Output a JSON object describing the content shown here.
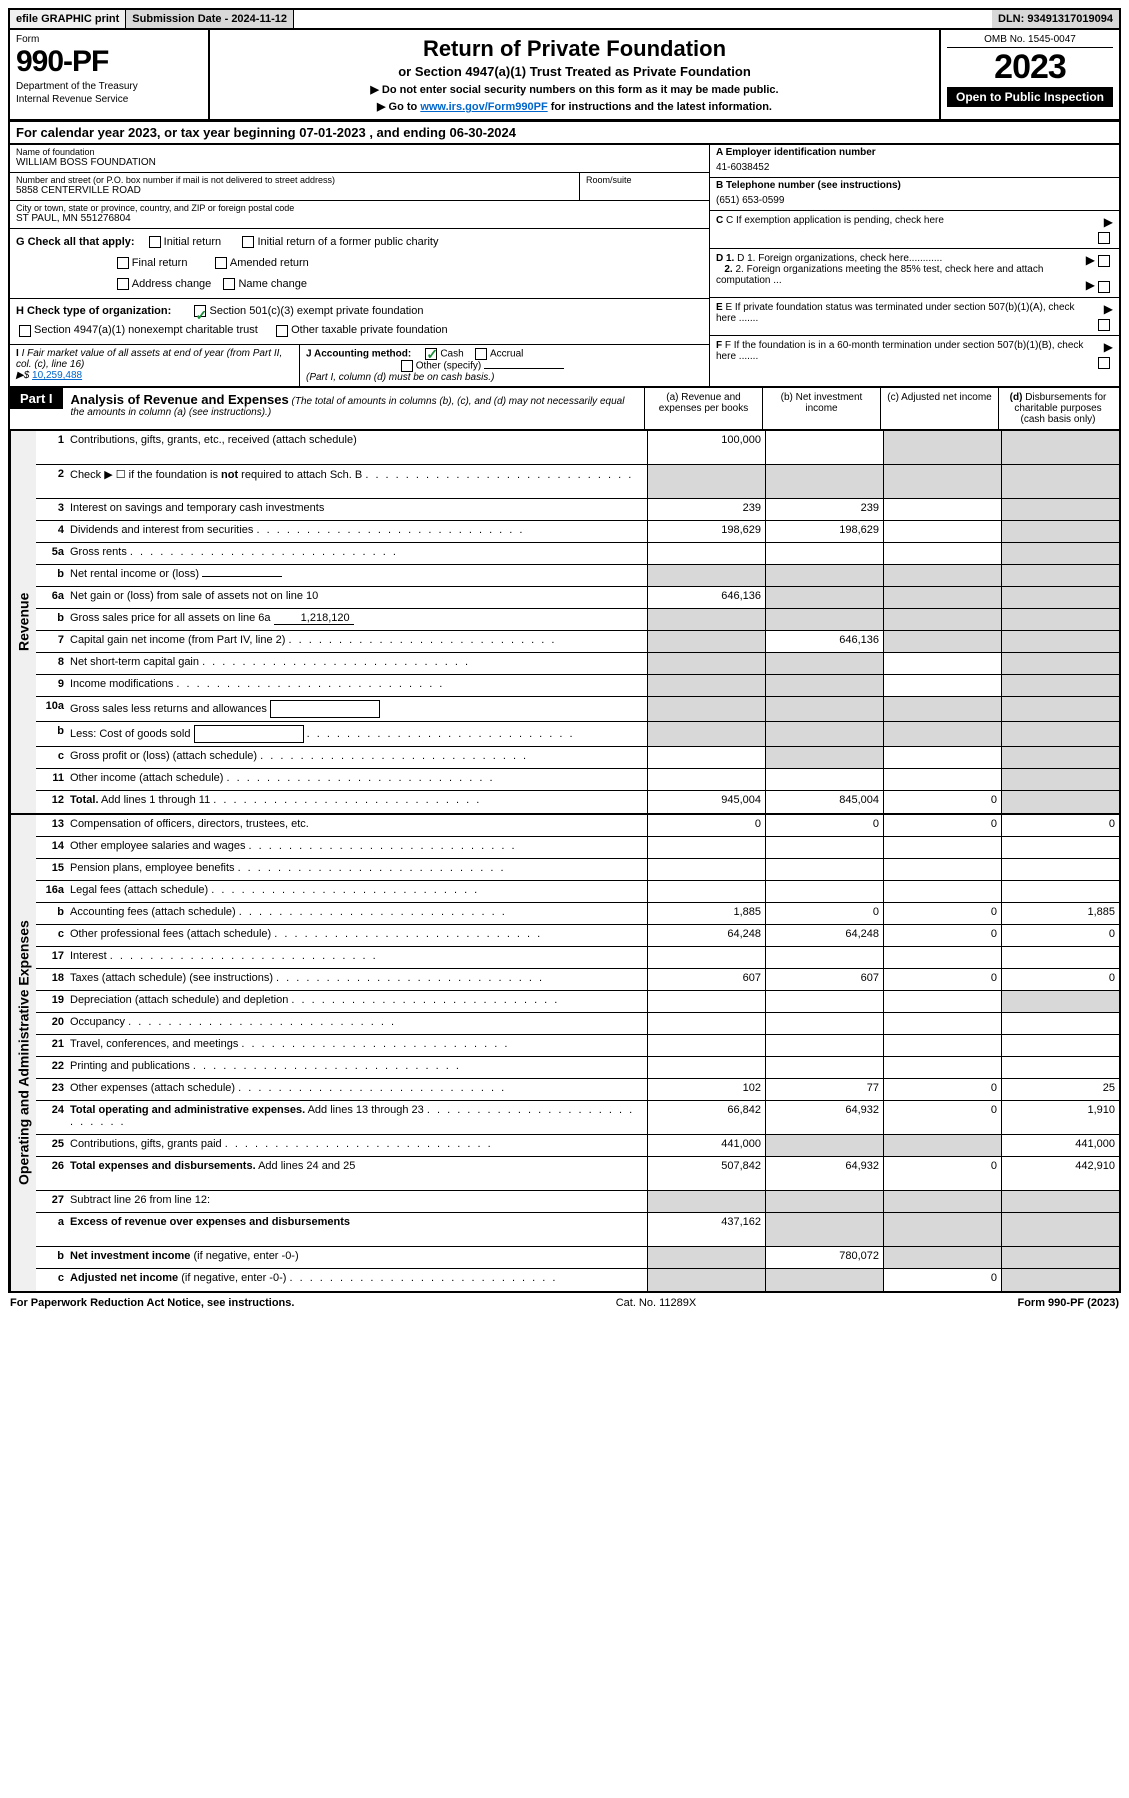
{
  "top_bar": {
    "efile": "efile GRAPHIC print",
    "submission": "Submission Date - 2024-11-12",
    "dln": "DLN: 93491317019094"
  },
  "header": {
    "form_label": "Form",
    "form_number": "990-PF",
    "dept1": "Department of the Treasury",
    "dept2": "Internal Revenue Service",
    "title": "Return of Private Foundation",
    "subtitle": "or Section 4947(a)(1) Trust Treated as Private Foundation",
    "note1": "▶ Do not enter social security numbers on this form as it may be made public.",
    "note2_pre": "▶ Go to ",
    "note2_link": "www.irs.gov/Form990PF",
    "note2_post": " for instructions and the latest information.",
    "omb": "OMB No. 1545-0047",
    "year": "2023",
    "open": "Open to Public Inspection"
  },
  "cal_year": "For calendar year 2023, or tax year beginning 07-01-2023                         , and ending 06-30-2024",
  "info": {
    "name_label": "Name of foundation",
    "name_value": "WILLIAM BOSS FOUNDATION",
    "addr_label": "Number and street (or P.O. box number if mail is not delivered to street address)",
    "addr_value": "5858 CENTERVILLE ROAD",
    "room_label": "Room/suite",
    "city_label": "City or town, state or province, country, and ZIP or foreign postal code",
    "city_value": "ST PAUL, MN  551276804",
    "ein_label": "A Employer identification number",
    "ein_value": "41-6038452",
    "phone_label": "B Telephone number (see instructions)",
    "phone_value": "(651) 653-0599",
    "c_label": "C If exemption application is pending, check here",
    "d1_label": "D 1. Foreign organizations, check here............",
    "d2_label": "2. Foreign organizations meeting the 85% test, check here and attach computation ...",
    "e_label": "E  If private foundation status was terminated under section 507(b)(1)(A), check here .......",
    "f_label": "F  If the foundation is in a 60-month termination under section 507(b)(1)(B), check here ......."
  },
  "g": {
    "label": "G Check all that apply:",
    "o1": "Initial return",
    "o2": "Initial return of a former public charity",
    "o3": "Final return",
    "o4": "Amended return",
    "o5": "Address change",
    "o6": "Name change"
  },
  "h": {
    "label": "H Check type of organization:",
    "o1": "Section 501(c)(3) exempt private foundation",
    "o2": "Section 4947(a)(1) nonexempt charitable trust",
    "o3": "Other taxable private foundation"
  },
  "i": {
    "label": "I Fair market value of all assets at end of year (from Part II, col. (c), line 16)",
    "arrow": "▶$",
    "value": "10,259,488"
  },
  "j": {
    "label": "J Accounting method:",
    "o1": "Cash",
    "o2": "Accrual",
    "o3": "Other (specify)",
    "note": "(Part I, column (d) must be on cash basis.)"
  },
  "part1": {
    "tag": "Part I",
    "title": "Analysis of Revenue and Expenses",
    "desc": "(The total of amounts in columns (b), (c), and (d) may not necessarily equal the amounts in column (a) (see instructions).)",
    "col_a": "(a)   Revenue and expenses per books",
    "col_b": "(b)   Net investment income",
    "col_c": "(c)   Adjusted net income",
    "col_d": "(d)   Disbursements for charitable purposes (cash basis only)"
  },
  "sections": {
    "revenue": "Revenue",
    "expenses": "Operating and Administrative Expenses"
  },
  "rows": [
    {
      "n": "1",
      "d": "Contributions, gifts, grants, etc., received (attach schedule)",
      "a": "100,000",
      "b": "",
      "c": "g",
      "dcol": "g",
      "tall": true
    },
    {
      "n": "2",
      "d": "Check ▶ ☐ if the foundation is <b>not</b> required to attach Sch. B",
      "a": "g",
      "b": "g",
      "c": "g",
      "dcol": "g",
      "dots": true,
      "tall": true
    },
    {
      "n": "3",
      "d": "Interest on savings and temporary cash investments",
      "a": "239",
      "b": "239",
      "c": "",
      "dcol": "g"
    },
    {
      "n": "4",
      "d": "Dividends and interest from securities",
      "a": "198,629",
      "b": "198,629",
      "c": "",
      "dcol": "g",
      "dots": true
    },
    {
      "n": "5a",
      "d": "Gross rents",
      "a": "",
      "b": "",
      "c": "",
      "dcol": "g",
      "dots": true
    },
    {
      "n": "b",
      "d": "Net rental income or (loss)",
      "a": "g",
      "b": "g",
      "c": "g",
      "dcol": "g",
      "inline": true
    },
    {
      "n": "6a",
      "d": "Net gain or (loss) from sale of assets not on line 10",
      "a": "646,136",
      "b": "g",
      "c": "g",
      "dcol": "g"
    },
    {
      "n": "b",
      "d": "Gross sales price for all assets on line 6a",
      "a": "g",
      "b": "g",
      "c": "g",
      "dcol": "g",
      "inline_val": "1,218,120"
    },
    {
      "n": "7",
      "d": "Capital gain net income (from Part IV, line 2)",
      "a": "g",
      "b": "646,136",
      "c": "g",
      "dcol": "g",
      "dots": true
    },
    {
      "n": "8",
      "d": "Net short-term capital gain",
      "a": "g",
      "b": "g",
      "c": "",
      "dcol": "g",
      "dots": true
    },
    {
      "n": "9",
      "d": "Income modifications",
      "a": "g",
      "b": "g",
      "c": "",
      "dcol": "g",
      "dots": true
    },
    {
      "n": "10a",
      "d": "Gross sales less returns and allowances",
      "a": "g",
      "b": "g",
      "c": "g",
      "dcol": "g",
      "subbox": true
    },
    {
      "n": "b",
      "d": "Less: Cost of goods sold",
      "a": "g",
      "b": "g",
      "c": "g",
      "dcol": "g",
      "subbox": true,
      "dots": true,
      "short": true
    },
    {
      "n": "c",
      "d": "Gross profit or (loss) (attach schedule)",
      "a": "",
      "b": "g",
      "c": "",
      "dcol": "g",
      "dots": true
    },
    {
      "n": "11",
      "d": "Other income (attach schedule)",
      "a": "",
      "b": "",
      "c": "",
      "dcol": "g",
      "dots": true
    },
    {
      "n": "12",
      "d": "<b>Total.</b> Add lines 1 through 11",
      "a": "945,004",
      "b": "845,004",
      "c": "0",
      "dcol": "g",
      "dots": true
    }
  ],
  "exp_rows": [
    {
      "n": "13",
      "d": "Compensation of officers, directors, trustees, etc.",
      "a": "0",
      "b": "0",
      "c": "0",
      "dcol": "0"
    },
    {
      "n": "14",
      "d": "Other employee salaries and wages",
      "a": "",
      "b": "",
      "c": "",
      "dcol": "",
      "dots": true
    },
    {
      "n": "15",
      "d": "Pension plans, employee benefits",
      "a": "",
      "b": "",
      "c": "",
      "dcol": "",
      "dots": true
    },
    {
      "n": "16a",
      "d": "Legal fees (attach schedule)",
      "a": "",
      "b": "",
      "c": "",
      "dcol": "",
      "dots": true
    },
    {
      "n": "b",
      "d": "Accounting fees (attach schedule)",
      "a": "1,885",
      "b": "0",
      "c": "0",
      "dcol": "1,885",
      "dots": true
    },
    {
      "n": "c",
      "d": "Other professional fees (attach schedule)",
      "a": "64,248",
      "b": "64,248",
      "c": "0",
      "dcol": "0",
      "dots": true
    },
    {
      "n": "17",
      "d": "Interest",
      "a": "",
      "b": "",
      "c": "",
      "dcol": "",
      "dots": true
    },
    {
      "n": "18",
      "d": "Taxes (attach schedule) (see instructions)",
      "a": "607",
      "b": "607",
      "c": "0",
      "dcol": "0",
      "dots": true
    },
    {
      "n": "19",
      "d": "Depreciation (attach schedule) and depletion",
      "a": "",
      "b": "",
      "c": "",
      "dcol": "g",
      "dots": true
    },
    {
      "n": "20",
      "d": "Occupancy",
      "a": "",
      "b": "",
      "c": "",
      "dcol": "",
      "dots": true
    },
    {
      "n": "21",
      "d": "Travel, conferences, and meetings",
      "a": "",
      "b": "",
      "c": "",
      "dcol": "",
      "dots": true
    },
    {
      "n": "22",
      "d": "Printing and publications",
      "a": "",
      "b": "",
      "c": "",
      "dcol": "",
      "dots": true
    },
    {
      "n": "23",
      "d": "Other expenses (attach schedule)",
      "a": "102",
      "b": "77",
      "c": "0",
      "dcol": "25",
      "dots": true
    },
    {
      "n": "24",
      "d": "<b>Total operating and administrative expenses.</b> Add lines 13 through 23",
      "a": "66,842",
      "b": "64,932",
      "c": "0",
      "dcol": "1,910",
      "dots": true,
      "tall": true
    },
    {
      "n": "25",
      "d": "Contributions, gifts, grants paid",
      "a": "441,000",
      "b": "g",
      "c": "g",
      "dcol": "441,000",
      "dots": true
    },
    {
      "n": "26",
      "d": "<b>Total expenses and disbursements.</b> Add lines 24 and 25",
      "a": "507,842",
      "b": "64,932",
      "c": "0",
      "dcol": "442,910",
      "tall": true
    },
    {
      "n": "27",
      "d": "Subtract line 26 from line 12:",
      "a": "g",
      "b": "g",
      "c": "g",
      "dcol": "g"
    },
    {
      "n": "a",
      "d": "<b>Excess of revenue over expenses and disbursements</b>",
      "a": "437,162",
      "b": "g",
      "c": "g",
      "dcol": "g",
      "tall": true
    },
    {
      "n": "b",
      "d": "<b>Net investment income</b> (if negative, enter -0-)",
      "a": "g",
      "b": "780,072",
      "c": "g",
      "dcol": "g"
    },
    {
      "n": "c",
      "d": "<b>Adjusted net income</b> (if negative, enter -0-)",
      "a": "g",
      "b": "g",
      "c": "0",
      "dcol": "g",
      "dots": true
    }
  ],
  "footer": {
    "left": "For Paperwork Reduction Act Notice, see instructions.",
    "center": "Cat. No. 11289X",
    "right": "Form 990-PF (2023)"
  },
  "colors": {
    "grey": "#d8d8d8",
    "link": "#0066cc",
    "check": "#1a8f3a"
  }
}
